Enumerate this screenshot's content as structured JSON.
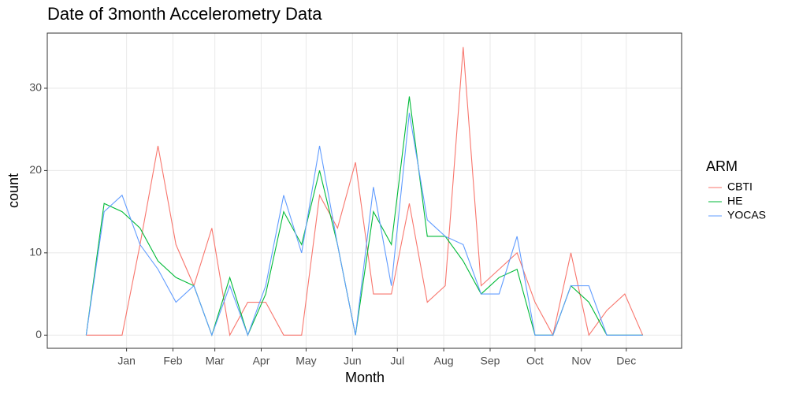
{
  "chart_data": {
    "type": "line",
    "title": "Date of 3month Accelerometry Data",
    "x_label": "Month",
    "y_label": "count",
    "legend_title": "ARM",
    "x": [
      -26,
      -14,
      -2,
      10,
      22,
      34,
      46,
      58,
      70,
      82,
      94,
      106,
      118,
      130,
      142,
      154,
      166,
      178,
      190,
      202,
      214,
      226,
      238,
      250,
      262,
      274,
      286,
      298,
      310,
      322,
      334,
      346
    ],
    "series": [
      {
        "name": "CBTI",
        "color": "#F8766D",
        "values": [
          0,
          0,
          0,
          11,
          23,
          11,
          6,
          13,
          0,
          4,
          4,
          0,
          0,
          17,
          13,
          21,
          5,
          5,
          16,
          4,
          6,
          35,
          6,
          8,
          10,
          4,
          0,
          10,
          0,
          3,
          5,
          0
        ]
      },
      {
        "name": "HE",
        "color": "#00BA38",
        "values": [
          0,
          16,
          15,
          13,
          9,
          7,
          6,
          0,
          7,
          0,
          5,
          15,
          11,
          20,
          11,
          0,
          15,
          11,
          29,
          12,
          12,
          9,
          5,
          7,
          8,
          0,
          0,
          6,
          4,
          0,
          0,
          0
        ]
      },
      {
        "name": "YOCAS",
        "color": "#619CFF",
        "values": [
          0,
          15,
          17,
          11,
          8,
          4,
          6,
          0,
          6,
          0,
          6,
          17,
          10,
          23,
          11,
          0,
          18,
          6,
          27,
          14,
          12,
          11,
          5,
          5,
          12,
          0,
          0,
          6,
          6,
          0,
          0,
          0
        ]
      }
    ],
    "xlim": [
      -52,
      372
    ],
    "ylim": [
      -1.6,
      36.7
    ],
    "xticks": [
      {
        "value": 1,
        "label": "Jan"
      },
      {
        "value": 32,
        "label": "Feb"
      },
      {
        "value": 60,
        "label": "Mar"
      },
      {
        "value": 91,
        "label": "Apr"
      },
      {
        "value": 121,
        "label": "May"
      },
      {
        "value": 152,
        "label": "Jun"
      },
      {
        "value": 182,
        "label": "Jul"
      },
      {
        "value": 213,
        "label": "Aug"
      },
      {
        "value": 244,
        "label": "Sep"
      },
      {
        "value": 274,
        "label": "Oct"
      },
      {
        "value": 305,
        "label": "Nov"
      },
      {
        "value": 335,
        "label": "Dec"
      }
    ],
    "yticks": [
      0,
      10,
      20,
      30
    ],
    "grid": true
  }
}
